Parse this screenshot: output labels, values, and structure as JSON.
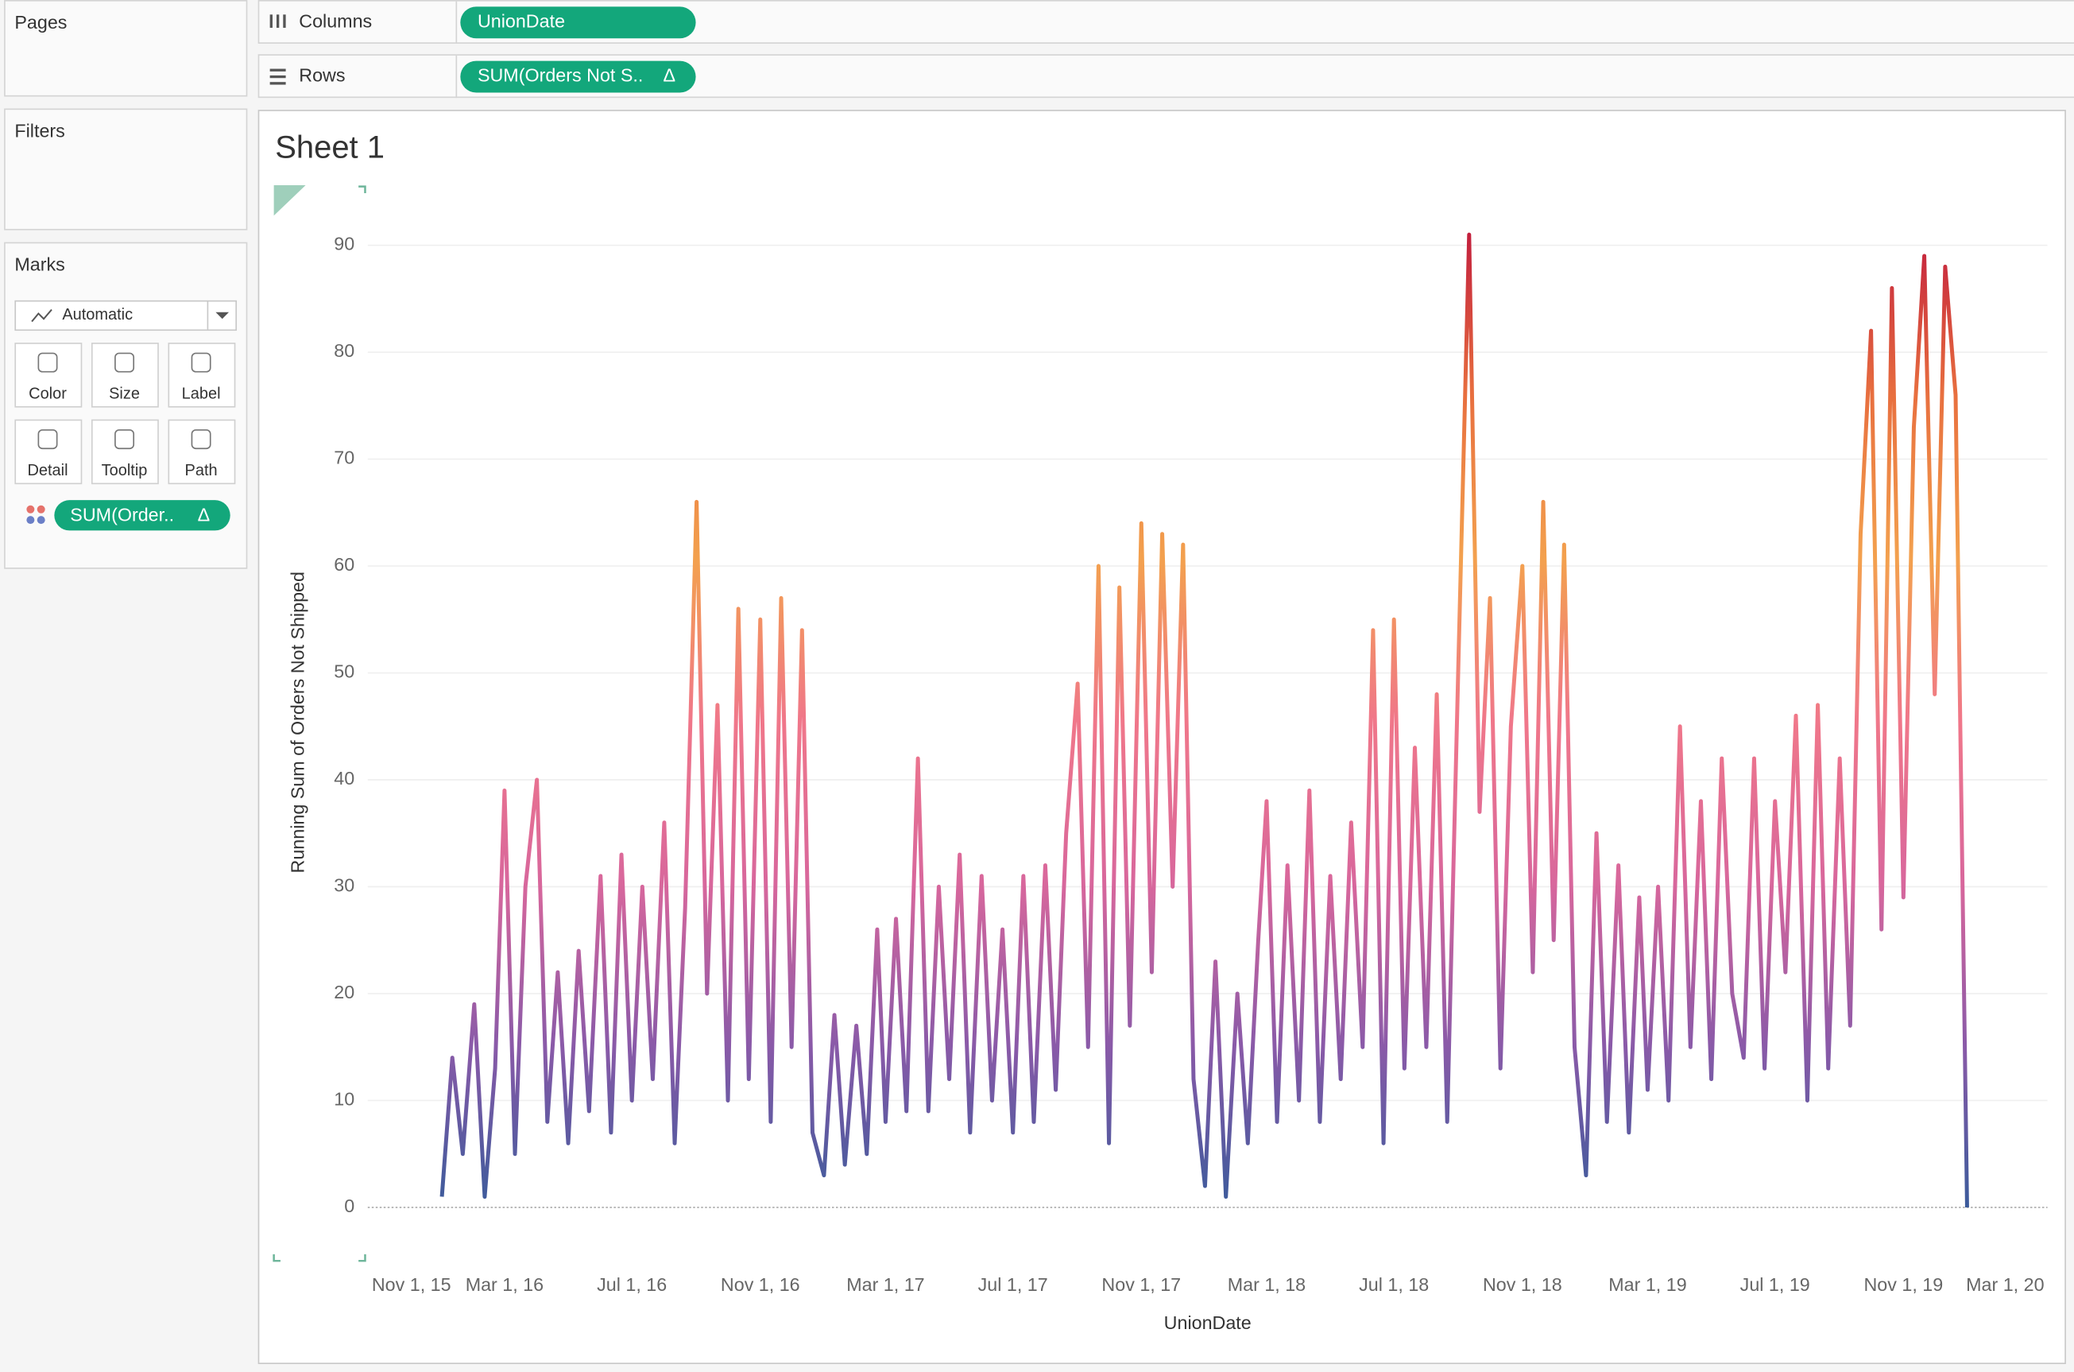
{
  "ui": {
    "pages_label": "Pages",
    "filters_label": "Filters",
    "marks_label": "Marks",
    "columns_label": "Columns",
    "columns_pill": "UnionDate",
    "rows_label": "Rows",
    "rows_pill": "SUM(Orders Not S..",
    "pill_icon": "Δ",
    "mark_type": "Automatic",
    "mark_cards": [
      "Color",
      "Size",
      "Label",
      "Detail",
      "Tooltip",
      "Path"
    ],
    "color_pill": "SUM(Order.."
  },
  "chart_data": {
    "type": "line",
    "title": "Sheet 1",
    "x_label": "UnionDate",
    "y_label": "Running Sum of Orders Not Shipped",
    "x": [
      "2016-01-01",
      "2016-01-11",
      "2016-01-21",
      "2016-02-01",
      "2016-02-11",
      "2016-02-21",
      "2016-03-01",
      "2016-03-11",
      "2016-03-21",
      "2016-04-01",
      "2016-04-11",
      "2016-04-21",
      "2016-05-01",
      "2016-05-11",
      "2016-05-21",
      "2016-06-01",
      "2016-06-11",
      "2016-06-21",
      "2016-07-01",
      "2016-07-11",
      "2016-07-21",
      "2016-08-01",
      "2016-08-11",
      "2016-08-21",
      "2016-09-01",
      "2016-09-11",
      "2016-09-21",
      "2016-10-01",
      "2016-10-11",
      "2016-10-21",
      "2016-11-01",
      "2016-11-11",
      "2016-11-21",
      "2016-12-01",
      "2016-12-11",
      "2016-12-21",
      "2017-01-01",
      "2017-01-11",
      "2017-01-21",
      "2017-02-01",
      "2017-02-11",
      "2017-02-21",
      "2017-03-01",
      "2017-03-11",
      "2017-03-21",
      "2017-04-01",
      "2017-04-11",
      "2017-04-21",
      "2017-05-01",
      "2017-05-11",
      "2017-05-21",
      "2017-06-01",
      "2017-06-11",
      "2017-06-21",
      "2017-07-01",
      "2017-07-11",
      "2017-07-21",
      "2017-08-01",
      "2017-08-11",
      "2017-08-21",
      "2017-09-01",
      "2017-09-11",
      "2017-09-21",
      "2017-10-01",
      "2017-10-11",
      "2017-10-21",
      "2017-11-01",
      "2017-11-11",
      "2017-11-21",
      "2017-12-01",
      "2017-12-11",
      "2017-12-21",
      "2018-01-01",
      "2018-01-11",
      "2018-01-21",
      "2018-02-01",
      "2018-02-11",
      "2018-02-21",
      "2018-03-01",
      "2018-03-11",
      "2018-03-21",
      "2018-04-01",
      "2018-04-11",
      "2018-04-21",
      "2018-05-01",
      "2018-05-11",
      "2018-05-21",
      "2018-06-01",
      "2018-06-11",
      "2018-06-21",
      "2018-07-01",
      "2018-07-11",
      "2018-07-21",
      "2018-08-01",
      "2018-08-11",
      "2018-08-21",
      "2018-09-01",
      "2018-09-11",
      "2018-09-21",
      "2018-10-01",
      "2018-10-11",
      "2018-10-21",
      "2018-11-01",
      "2018-11-11",
      "2018-11-21",
      "2018-12-01",
      "2018-12-11",
      "2018-12-21",
      "2019-01-01",
      "2019-01-11",
      "2019-01-21",
      "2019-02-01",
      "2019-02-11",
      "2019-02-21",
      "2019-03-01",
      "2019-03-11",
      "2019-03-21",
      "2019-04-01",
      "2019-04-11",
      "2019-04-21",
      "2019-05-01",
      "2019-05-11",
      "2019-05-21",
      "2019-06-01",
      "2019-06-11",
      "2019-06-21",
      "2019-07-01",
      "2019-07-11",
      "2019-07-21",
      "2019-08-01",
      "2019-08-11",
      "2019-08-21",
      "2019-09-01",
      "2019-09-11",
      "2019-09-21",
      "2019-10-01",
      "2019-10-11",
      "2019-10-21",
      "2019-11-01",
      "2019-11-11",
      "2019-11-21",
      "2019-12-01",
      "2019-12-11",
      "2019-12-21",
      "2020-01-01"
    ],
    "values": [
      1,
      14,
      5,
      19,
      1,
      13,
      39,
      5,
      30,
      40,
      8,
      22,
      6,
      24,
      9,
      31,
      7,
      33,
      10,
      30,
      12,
      36,
      6,
      28,
      66,
      20,
      47,
      10,
      56,
      12,
      55,
      8,
      57,
      15,
      54,
      7,
      3,
      18,
      4,
      17,
      5,
      26,
      8,
      27,
      9,
      42,
      9,
      30,
      12,
      33,
      7,
      31,
      10,
      26,
      7,
      31,
      8,
      32,
      11,
      35,
      49,
      15,
      60,
      6,
      58,
      17,
      64,
      22,
      63,
      30,
      62,
      12,
      2,
      23,
      1,
      20,
      6,
      25,
      38,
      8,
      32,
      10,
      39,
      8,
      31,
      12,
      36,
      15,
      54,
      6,
      55,
      13,
      43,
      15,
      48,
      8,
      52,
      91,
      37,
      57,
      13,
      45,
      60,
      22,
      66,
      25,
      62,
      15,
      3,
      35,
      8,
      32,
      7,
      29,
      11,
      30,
      10,
      45,
      15,
      38,
      12,
      42,
      20,
      14,
      42,
      13,
      38,
      22,
      46,
      10,
      47,
      13,
      42,
      17,
      63,
      82,
      26,
      86,
      29,
      73,
      89,
      48,
      88,
      76,
      0
    ],
    "colors": [
      "#3b5b9b",
      "#8a5aa8",
      "#d8679c",
      "#f0778a",
      "#f3a14e",
      "#e8703f",
      "#c3203d"
    ],
    "xlim": [
      "2015-10-22",
      "2020-03-18"
    ],
    "xticks": [
      {
        "value": "2015-11-01",
        "label": "Nov 1, 15"
      },
      {
        "value": "2016-03-01",
        "label": "Mar 1, 16"
      },
      {
        "value": "2016-07-01",
        "label": "Jul 1, 16"
      },
      {
        "value": "2016-11-01",
        "label": "Nov 1, 16"
      },
      {
        "value": "2017-03-01",
        "label": "Mar 1, 17"
      },
      {
        "value": "2017-07-01",
        "label": "Jul 1, 17"
      },
      {
        "value": "2017-11-01",
        "label": "Nov 1, 17"
      },
      {
        "value": "2018-03-01",
        "label": "Mar 1, 18"
      },
      {
        "value": "2018-07-01",
        "label": "Jul 1, 18"
      },
      {
        "value": "2018-11-01",
        "label": "Nov 1, 18"
      },
      {
        "value": "2019-03-01",
        "label": "Mar 1, 19"
      },
      {
        "value": "2019-07-01",
        "label": "Jul 1, 19"
      },
      {
        "value": "2019-11-01",
        "label": "Nov 1, 19"
      },
      {
        "value": "2020-03-01",
        "label": "Mar 1, 20"
      }
    ],
    "ylim": [
      -5,
      95
    ],
    "yticks": [
      0,
      10,
      20,
      30,
      40,
      50,
      60,
      70,
      80,
      90
    ],
    "grid": true
  }
}
